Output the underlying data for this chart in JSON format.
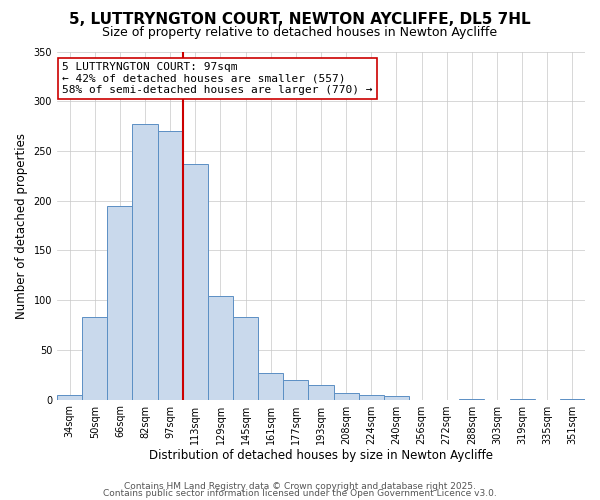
{
  "title1": "5, LUTTRYNGTON COURT, NEWTON AYCLIFFE, DL5 7HL",
  "title2": "Size of property relative to detached houses in Newton Aycliffe",
  "xlabel": "Distribution of detached houses by size in Newton Aycliffe",
  "ylabel": "Number of detached properties",
  "bin_labels": [
    "34sqm",
    "50sqm",
    "66sqm",
    "82sqm",
    "97sqm",
    "113sqm",
    "129sqm",
    "145sqm",
    "161sqm",
    "177sqm",
    "193sqm",
    "208sqm",
    "224sqm",
    "240sqm",
    "256sqm",
    "272sqm",
    "288sqm",
    "303sqm",
    "319sqm",
    "335sqm",
    "351sqm"
  ],
  "bin_values": [
    5,
    83,
    195,
    277,
    270,
    237,
    104,
    83,
    27,
    20,
    15,
    7,
    5,
    4,
    0,
    0,
    1,
    0,
    1,
    0,
    1
  ],
  "bar_color": "#c9d9ec",
  "bar_edge_color": "#5b8fc4",
  "vline_color": "#cc0000",
  "vline_bin": 4,
  "annotation_text": "5 LUTTRYNGTON COURT: 97sqm\n← 42% of detached houses are smaller (557)\n58% of semi-detached houses are larger (770) →",
  "annotation_box_color": "#ffffff",
  "annotation_box_edge": "#cc0000",
  "ylim": [
    0,
    350
  ],
  "yticks": [
    0,
    50,
    100,
    150,
    200,
    250,
    300,
    350
  ],
  "footer1": "Contains HM Land Registry data © Crown copyright and database right 2025.",
  "footer2": "Contains public sector information licensed under the Open Government Licence v3.0.",
  "background_color": "#ffffff",
  "grid_color": "#c8c8c8",
  "title1_fontsize": 11,
  "title2_fontsize": 9,
  "axis_label_fontsize": 8.5,
  "tick_fontsize": 7,
  "annotation_fontsize": 8,
  "footer_fontsize": 6.5
}
